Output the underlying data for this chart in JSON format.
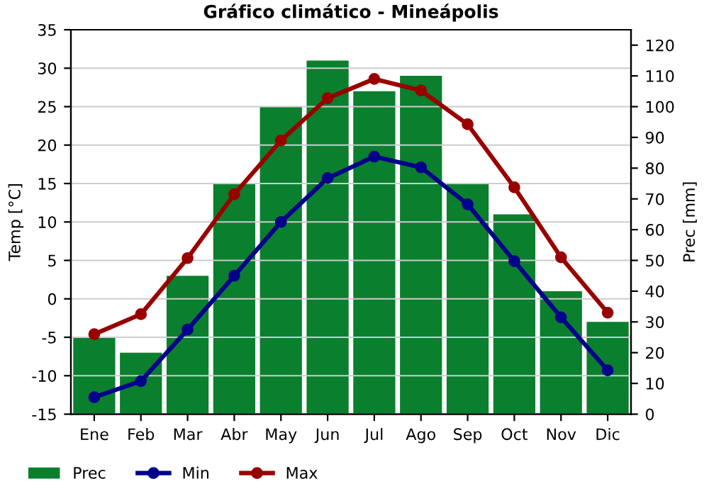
{
  "chart_data": {
    "type": "bar",
    "title": "Gráfico climático - Mineápolis",
    "ylabel": "Temp [°C]",
    "y2label": "Prec [mm]",
    "categories": [
      "Ene",
      "Feb",
      "Mar",
      "Abr",
      "May",
      "Jun",
      "Jul",
      "Ago",
      "Sep",
      "Oct",
      "Nov",
      "Dic"
    ],
    "series": [
      {
        "name": "Prec",
        "axis": "y2",
        "color": "#0a7f2e",
        "values": [
          25,
          20,
          45,
          75,
          100,
          115,
          105,
          110,
          75,
          65,
          40,
          30
        ]
      },
      {
        "name": "Min",
        "type": "line",
        "color": "#00008b",
        "values": [
          -12.8,
          -10.7,
          -4,
          3,
          10,
          15.7,
          18.5,
          17.1,
          12.3,
          4.9,
          -2.4,
          -9.3
        ]
      },
      {
        "name": "Max",
        "type": "line",
        "color": "#990000",
        "values": [
          -4.6,
          -2,
          5.3,
          13.6,
          20.6,
          26.1,
          28.6,
          27.1,
          22.7,
          14.5,
          5.4,
          -1.8
        ]
      }
    ],
    "ylim": [
      -15,
      35
    ],
    "yticks": [
      -15,
      -10,
      -5,
      0,
      5,
      10,
      15,
      20,
      25,
      30,
      35
    ],
    "y2lim": [
      0,
      125
    ],
    "y2ticks": [
      0,
      10,
      20,
      30,
      40,
      50,
      60,
      70,
      80,
      90,
      100,
      110,
      120
    ],
    "grid": "y",
    "legend": "bottom",
    "marker": "circle",
    "line_style": "solid"
  }
}
